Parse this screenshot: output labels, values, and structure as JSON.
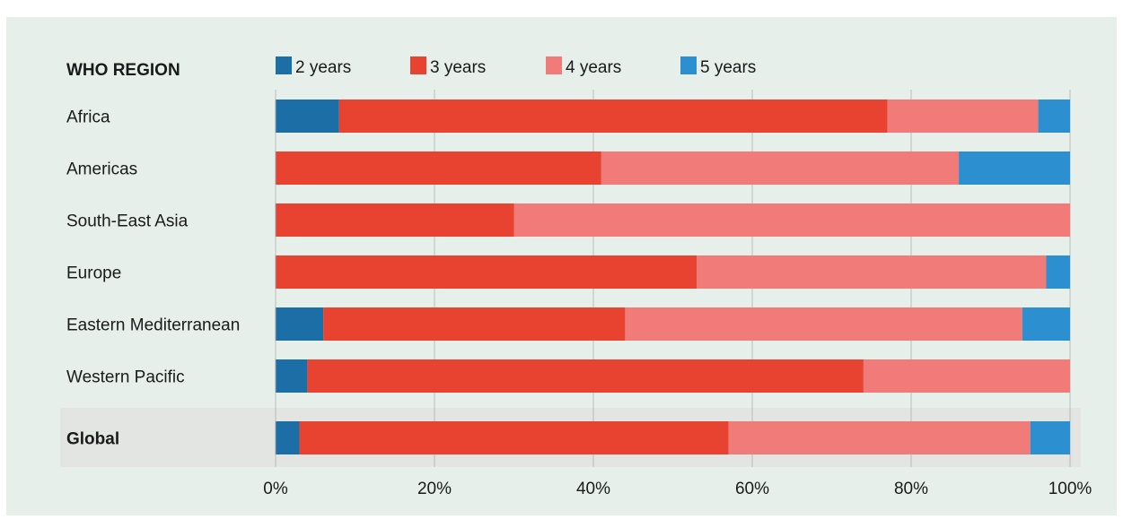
{
  "chart_data": {
    "type": "bar",
    "stacked": true,
    "orientation": "horizontal",
    "category_header": "WHO REGION",
    "categories": [
      "Africa",
      "Americas",
      "South-East Asia",
      "Europe",
      "Eastern Mediterranean",
      "Western Pacific",
      "Global"
    ],
    "highlighted_category": "Global",
    "series": [
      {
        "name": "2 years",
        "color": "#1b6ea6",
        "values": [
          8,
          0,
          0,
          0,
          6,
          4,
          3
        ]
      },
      {
        "name": "3 years",
        "color": "#e84230",
        "values": [
          69,
          41,
          30,
          53,
          38,
          70,
          54
        ]
      },
      {
        "name": "4 years",
        "color": "#f07b78",
        "values": [
          19,
          45,
          70,
          44,
          50,
          26,
          38
        ]
      },
      {
        "name": "5 years",
        "color": "#2b8fd0",
        "values": [
          4,
          14,
          0,
          3,
          6,
          0,
          5
        ]
      }
    ],
    "xlim": [
      0,
      100
    ],
    "x_ticks": [
      "0%",
      "20%",
      "40%",
      "60%",
      "80%",
      "100%"
    ],
    "grid": true,
    "legend_position": "top"
  }
}
